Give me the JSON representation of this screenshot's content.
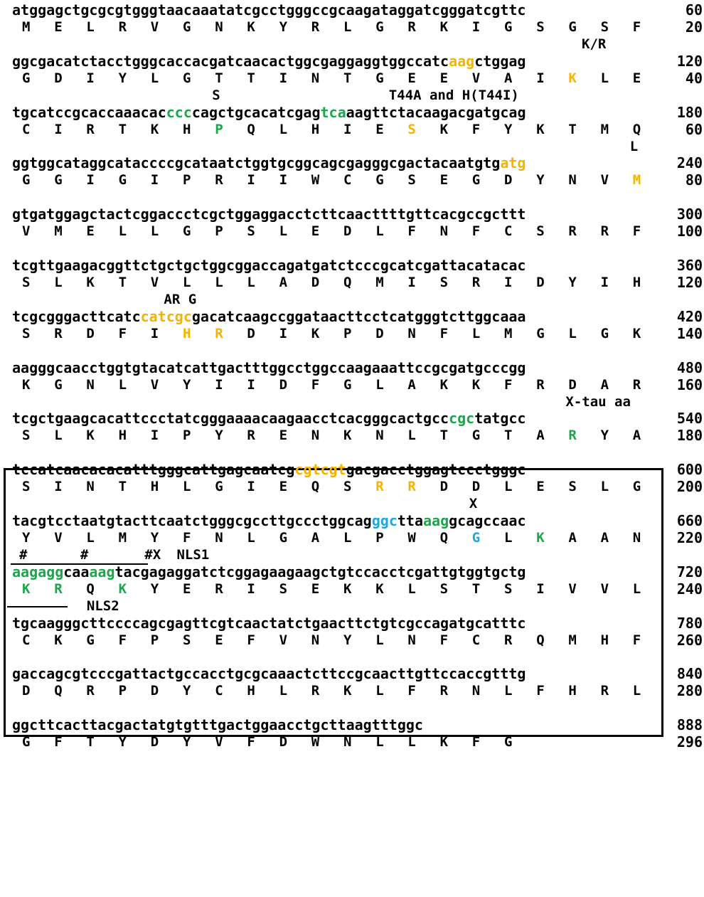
{
  "rows": [
    {
      "nuc": [
        {
          "t": "atggagctgcgcgtgggtaacaaatatcgcctgggccgcaagataggatcgggatcgttc"
        }
      ],
      "nuc_end": "60",
      "aa": [
        {
          "r": "M"
        },
        {
          "r": "E"
        },
        {
          "r": "L"
        },
        {
          "r": "R"
        },
        {
          "r": "V"
        },
        {
          "r": "G"
        },
        {
          "r": "N"
        },
        {
          "r": "K"
        },
        {
          "r": "Y"
        },
        {
          "r": "R"
        },
        {
          "r": "L"
        },
        {
          "r": "G"
        },
        {
          "r": "R"
        },
        {
          "r": "K"
        },
        {
          "r": "I"
        },
        {
          "r": "G"
        },
        {
          "r": "S"
        },
        {
          "r": "G"
        },
        {
          "r": "S"
        },
        {
          "r": "F"
        }
      ],
      "aa_end": "20",
      "below": [
        {
          "t": "K/R",
          "col": 17.5
        }
      ]
    },
    {
      "nuc": [
        {
          "t": "ggcgacatctacctgggcaccacgatcaacactggcgaggaggtggccatc"
        },
        {
          "t": "aag",
          "c": "orange"
        },
        {
          "t": "ctggag"
        }
      ],
      "nuc_end": "120",
      "aa": [
        {
          "r": "G"
        },
        {
          "r": "D"
        },
        {
          "r": "I"
        },
        {
          "r": "Y"
        },
        {
          "r": "L"
        },
        {
          "r": "G"
        },
        {
          "r": "T"
        },
        {
          "r": "T"
        },
        {
          "r": "I"
        },
        {
          "r": "N"
        },
        {
          "r": "T"
        },
        {
          "r": "G"
        },
        {
          "r": "E"
        },
        {
          "r": "E"
        },
        {
          "r": "V"
        },
        {
          "r": "A"
        },
        {
          "r": "I"
        },
        {
          "r": "K",
          "c": "orange"
        },
        {
          "r": "L"
        },
        {
          "r": "E"
        }
      ],
      "aa_end": "40",
      "below": [
        {
          "t": "S",
          "col": 6
        },
        {
          "t": "T44A and H(T44I)",
          "col": 11.5
        }
      ]
    },
    {
      "nuc": [
        {
          "t": "tgcatccgcaccaaacac"
        },
        {
          "t": "ccc",
          "c": "green"
        },
        {
          "t": "cagctgcacatcgag"
        },
        {
          "t": "tca",
          "c": "green"
        },
        {
          "t": "aagttctacaagacgatgcag"
        }
      ],
      "nuc_end": "180",
      "aa": [
        {
          "r": "C"
        },
        {
          "r": "I"
        },
        {
          "r": "R"
        },
        {
          "r": "T"
        },
        {
          "r": "K"
        },
        {
          "r": "H"
        },
        {
          "r": "P",
          "c": "green"
        },
        {
          "r": "Q"
        },
        {
          "r": "L"
        },
        {
          "r": "H"
        },
        {
          "r": "I"
        },
        {
          "r": "E"
        },
        {
          "r": "S",
          "c": "orange"
        },
        {
          "r": "K"
        },
        {
          "r": "F"
        },
        {
          "r": "Y"
        },
        {
          "r": "K"
        },
        {
          "r": "T"
        },
        {
          "r": "M"
        },
        {
          "r": "Q"
        }
      ],
      "aa_end": "60",
      "below": [
        {
          "t": "L",
          "col": 19
        }
      ]
    },
    {
      "nuc": [
        {
          "t": "ggtggcataggcataccccgcataatctggtgcggcagcgagggcgactacaatgtg"
        },
        {
          "t": "atg",
          "c": "orange"
        }
      ],
      "nuc_end": "240",
      "aa": [
        {
          "r": "G"
        },
        {
          "r": "G"
        },
        {
          "r": "I"
        },
        {
          "r": "G"
        },
        {
          "r": "I"
        },
        {
          "r": "P"
        },
        {
          "r": "R"
        },
        {
          "r": "I"
        },
        {
          "r": "I"
        },
        {
          "r": "W"
        },
        {
          "r": "C"
        },
        {
          "r": "G"
        },
        {
          "r": "S"
        },
        {
          "r": "E"
        },
        {
          "r": "G"
        },
        {
          "r": "D"
        },
        {
          "r": "Y"
        },
        {
          "r": "N"
        },
        {
          "r": "V"
        },
        {
          "r": "M",
          "c": "orange"
        }
      ],
      "aa_end": "80",
      "below": []
    },
    {
      "nuc": [
        {
          "t": "gtgatggagctactcggaccctcgctggaggacctcttcaacttttgttcacgccgcttt"
        }
      ],
      "nuc_end": "300",
      "aa": [
        {
          "r": "V"
        },
        {
          "r": "M"
        },
        {
          "r": "E"
        },
        {
          "r": "L"
        },
        {
          "r": "L"
        },
        {
          "r": "G"
        },
        {
          "r": "P"
        },
        {
          "r": "S"
        },
        {
          "r": "L"
        },
        {
          "r": "E"
        },
        {
          "r": "D"
        },
        {
          "r": "L"
        },
        {
          "r": "F"
        },
        {
          "r": "N"
        },
        {
          "r": "F"
        },
        {
          "r": "C"
        },
        {
          "r": "S"
        },
        {
          "r": "R"
        },
        {
          "r": "R"
        },
        {
          "r": "F"
        }
      ],
      "aa_end": "100",
      "below": []
    },
    {
      "nuc": [
        {
          "t": "tcgttgaagacggttctgctgctggcggaccagatgatctcccgcatcgattacatacac"
        }
      ],
      "nuc_end": "360",
      "aa": [
        {
          "r": "S"
        },
        {
          "r": "L"
        },
        {
          "r": "K"
        },
        {
          "r": "T"
        },
        {
          "r": "V"
        },
        {
          "r": "L"
        },
        {
          "r": "L"
        },
        {
          "r": "L"
        },
        {
          "r": "A"
        },
        {
          "r": "D"
        },
        {
          "r": "Q"
        },
        {
          "r": "M"
        },
        {
          "r": "I"
        },
        {
          "r": "S"
        },
        {
          "r": "R"
        },
        {
          "r": "I"
        },
        {
          "r": "D"
        },
        {
          "r": "Y"
        },
        {
          "r": "I"
        },
        {
          "r": "H"
        }
      ],
      "aa_end": "120",
      "below": [
        {
          "t": "AR G",
          "col": 4.5
        }
      ]
    },
    {
      "nuc": [
        {
          "t": "tcgcgggacttcatc"
        },
        {
          "t": "catcgc",
          "c": "orange"
        },
        {
          "t": "gacatcaagccggataacttcctcatgggtcttggcaaa"
        }
      ],
      "nuc_end": "420",
      "aa": [
        {
          "r": "S"
        },
        {
          "r": "R"
        },
        {
          "r": "D"
        },
        {
          "r": "F"
        },
        {
          "r": "I"
        },
        {
          "r": "H",
          "c": "orange"
        },
        {
          "r": "R",
          "c": "orange"
        },
        {
          "r": "D"
        },
        {
          "r": "I"
        },
        {
          "r": "K"
        },
        {
          "r": "P"
        },
        {
          "r": "D"
        },
        {
          "r": "N"
        },
        {
          "r": "F"
        },
        {
          "r": "L"
        },
        {
          "r": "M"
        },
        {
          "r": "G"
        },
        {
          "r": "L"
        },
        {
          "r": "G"
        },
        {
          "r": "K"
        }
      ],
      "aa_end": "140",
      "below": []
    },
    {
      "nuc": [
        {
          "t": "aagggcaacctggtgtacatcattgactttggcctggccaagaaattccgcgatgcccgg"
        }
      ],
      "nuc_end": "480",
      "aa": [
        {
          "r": "K"
        },
        {
          "r": "G"
        },
        {
          "r": "N"
        },
        {
          "r": "L"
        },
        {
          "r": "V"
        },
        {
          "r": "Y"
        },
        {
          "r": "I"
        },
        {
          "r": "I"
        },
        {
          "r": "D"
        },
        {
          "r": "F"
        },
        {
          "r": "G"
        },
        {
          "r": "L"
        },
        {
          "r": "A"
        },
        {
          "r": "K"
        },
        {
          "r": "K"
        },
        {
          "r": "F"
        },
        {
          "r": "R"
        },
        {
          "r": "D"
        },
        {
          "r": "A"
        },
        {
          "r": "R"
        }
      ],
      "aa_end": "160",
      "below": [
        {
          "t": "X-tau aa",
          "col": 17
        }
      ]
    },
    {
      "nuc": [
        {
          "t": "tcgctgaagcacattccctatcgggaaaacaagaacctcacgggcactgcc"
        },
        {
          "t": "cgc",
          "c": "green"
        },
        {
          "t": "tatgcc"
        }
      ],
      "nuc_end": "540",
      "aa": [
        {
          "r": "S"
        },
        {
          "r": "L"
        },
        {
          "r": "K"
        },
        {
          "r": "H"
        },
        {
          "r": "I"
        },
        {
          "r": "P"
        },
        {
          "r": "Y"
        },
        {
          "r": "R"
        },
        {
          "r": "E"
        },
        {
          "r": "N"
        },
        {
          "r": "K"
        },
        {
          "r": "N"
        },
        {
          "r": "L"
        },
        {
          "r": "T"
        },
        {
          "r": "G"
        },
        {
          "r": "T"
        },
        {
          "r": "A"
        },
        {
          "r": "R",
          "c": "green"
        },
        {
          "r": "Y"
        },
        {
          "r": "A"
        }
      ],
      "aa_end": "180",
      "below": []
    },
    {
      "nuc": [
        {
          "t": "tccatcaacacacatttgggcattgagcaatcg"
        },
        {
          "t": "cgtcgt",
          "c": "orange"
        },
        {
          "t": "gacgacctggagtccctgggc"
        }
      ],
      "nuc_end": "600",
      "aa": [
        {
          "r": "S"
        },
        {
          "r": "I"
        },
        {
          "r": "N"
        },
        {
          "r": "T"
        },
        {
          "r": "H"
        },
        {
          "r": "L"
        },
        {
          "r": "G"
        },
        {
          "r": "I"
        },
        {
          "r": "E"
        },
        {
          "r": "Q"
        },
        {
          "r": "S"
        },
        {
          "r": "R",
          "c": "orange"
        },
        {
          "r": "R",
          "c": "orange"
        },
        {
          "r": "D"
        },
        {
          "r": "D"
        },
        {
          "r": "L"
        },
        {
          "r": "E"
        },
        {
          "r": "S"
        },
        {
          "r": "L"
        },
        {
          "r": "G"
        }
      ],
      "aa_end": "200",
      "below": [
        {
          "t": "X",
          "col": 14
        }
      ]
    },
    {
      "nuc": [
        {
          "t": "tacgtcctaatgtacttcaatctgggcgccttgccctggcag"
        },
        {
          "t": "ggc",
          "c": "blue"
        },
        {
          "t": "tta"
        },
        {
          "t": "aag",
          "c": "green"
        },
        {
          "t": "gcagccaac"
        }
      ],
      "nuc_end": "660",
      "aa": [
        {
          "r": "Y"
        },
        {
          "r": "V"
        },
        {
          "r": "L"
        },
        {
          "r": "M"
        },
        {
          "r": "Y"
        },
        {
          "r": "F"
        },
        {
          "r": "N"
        },
        {
          "r": "L"
        },
        {
          "r": "G"
        },
        {
          "r": "A"
        },
        {
          "r": "L"
        },
        {
          "r": "P"
        },
        {
          "r": "W"
        },
        {
          "r": "Q"
        },
        {
          "r": "G",
          "c": "blue"
        },
        {
          "r": "L"
        },
        {
          "r": "K",
          "c": "green"
        },
        {
          "r": "A"
        },
        {
          "r": "A"
        },
        {
          "r": "N"
        }
      ],
      "aa_end": "220",
      "below": [
        {
          "t": "#",
          "col": 0
        },
        {
          "t": "#",
          "col": 1.9
        },
        {
          "t": "#X",
          "col": 3.9
        },
        {
          "t": "NLS1",
          "col": 4.9
        }
      ]
    },
    {
      "nuc": [
        {
          "t": "aagagg",
          "c": "green"
        },
        {
          "t": "caa"
        },
        {
          "t": "aag",
          "c": "green"
        },
        {
          "t": "tacgagaggatctcggagaagaagctgtccacctcgattgtggtgctg"
        }
      ],
      "nuc_end": "720",
      "aa": [
        {
          "r": "K",
          "c": "green"
        },
        {
          "r": "R",
          "c": "green"
        },
        {
          "r": "Q"
        },
        {
          "r": "K",
          "c": "green"
        },
        {
          "r": "Y"
        },
        {
          "r": "E"
        },
        {
          "r": "R"
        },
        {
          "r": "I"
        },
        {
          "r": "S"
        },
        {
          "r": "E"
        },
        {
          "r": "K"
        },
        {
          "r": "K"
        },
        {
          "r": "L"
        },
        {
          "r": "S"
        },
        {
          "r": "T"
        },
        {
          "r": "S"
        },
        {
          "r": "I"
        },
        {
          "r": "V"
        },
        {
          "r": "V"
        },
        {
          "r": "L"
        }
      ],
      "aa_end": "240",
      "below": [
        {
          "t": "NLS2",
          "col": 2.1
        }
      ]
    },
    {
      "nuc": [
        {
          "t": "tgcaagggcttccccagcgagttcgtcaactatctgaacttctgtcgccagatgcatttc"
        }
      ],
      "nuc_end": "780",
      "aa": [
        {
          "r": "C"
        },
        {
          "r": "K"
        },
        {
          "r": "G"
        },
        {
          "r": "F"
        },
        {
          "r": "P"
        },
        {
          "r": "S"
        },
        {
          "r": "E"
        },
        {
          "r": "F"
        },
        {
          "r": "V"
        },
        {
          "r": "N"
        },
        {
          "r": "Y"
        },
        {
          "r": "L"
        },
        {
          "r": "N"
        },
        {
          "r": "F"
        },
        {
          "r": "C"
        },
        {
          "r": "R"
        },
        {
          "r": "Q"
        },
        {
          "r": "M"
        },
        {
          "r": "H"
        },
        {
          "r": "F"
        }
      ],
      "aa_end": "260",
      "below": []
    },
    {
      "nuc": [
        {
          "t": "gaccagcgtcccgattactgccacctgcgcaaactcttccgcaacttgttccaccgtttg"
        }
      ],
      "nuc_end": "840",
      "aa": [
        {
          "r": "D"
        },
        {
          "r": "Q"
        },
        {
          "r": "R"
        },
        {
          "r": "P"
        },
        {
          "r": "D"
        },
        {
          "r": "Y"
        },
        {
          "r": "C"
        },
        {
          "r": "H"
        },
        {
          "r": "L"
        },
        {
          "r": "R"
        },
        {
          "r": "K"
        },
        {
          "r": "L"
        },
        {
          "r": "F"
        },
        {
          "r": "R"
        },
        {
          "r": "N"
        },
        {
          "r": "L"
        },
        {
          "r": "F"
        },
        {
          "r": "H"
        },
        {
          "r": "R"
        },
        {
          "r": "L"
        }
      ],
      "aa_end": "280",
      "below": []
    },
    {
      "nuc": [
        {
          "t": "ggcttcacttacgactatgtgtttgactggaacctgcttaagtttggc"
        }
      ],
      "nuc_end": "888",
      "aa": [
        {
          "r": "G"
        },
        {
          "r": "F"
        },
        {
          "r": "T"
        },
        {
          "r": "Y"
        },
        {
          "r": "D"
        },
        {
          "r": "Y"
        },
        {
          "r": "V"
        },
        {
          "r": "F"
        },
        {
          "r": "D"
        },
        {
          "r": "W"
        },
        {
          "r": "N"
        },
        {
          "r": "L"
        },
        {
          "r": "L"
        },
        {
          "r": "K"
        },
        {
          "r": "F"
        },
        {
          "r": "G"
        }
      ],
      "aa_end": "296",
      "below": []
    }
  ],
  "colors": {
    "orange": "#f5b400",
    "green": "#1aa64a",
    "blue": "#1ea7e0",
    "text": "#000000"
  }
}
